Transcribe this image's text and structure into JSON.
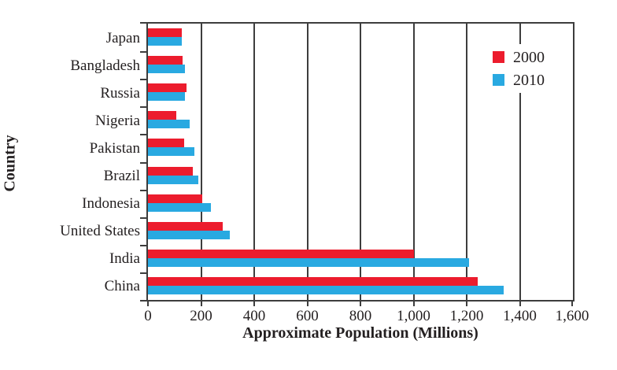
{
  "chart_data": {
    "type": "bar",
    "orientation": "horizontal",
    "xlabel": "Approximate Population (Millions)",
    "ylabel": "Country",
    "xlim": [
      0,
      1600
    ],
    "xticks": [
      0,
      200,
      400,
      600,
      800,
      1000,
      1200,
      1400,
      1600
    ],
    "xtick_labels": [
      "0",
      "200",
      "400",
      "600",
      "800",
      "1,000",
      "1,200",
      "1,400",
      "1,600"
    ],
    "categories": [
      "Japan",
      "Bangladesh",
      "Russia",
      "Nigeria",
      "Pakistan",
      "Brazil",
      "Indonesia",
      "United States",
      "India",
      "China"
    ],
    "series": [
      {
        "name": "2000",
        "color": "#EC1C2D",
        "values": [
          127,
          129,
          145,
          107,
          135,
          168,
          205,
          281,
          1000,
          1240
        ]
      },
      {
        "name": "2010",
        "color": "#29A9E1",
        "values": [
          127,
          140,
          139,
          158,
          174,
          190,
          237,
          309,
          1210,
          1338
        ]
      }
    ],
    "legend": {
      "position": "upper-right",
      "entries": [
        "2000",
        "2010"
      ]
    },
    "grid": "vertical",
    "grid_color": "#3d3d3d",
    "text_color": "#231f20"
  }
}
